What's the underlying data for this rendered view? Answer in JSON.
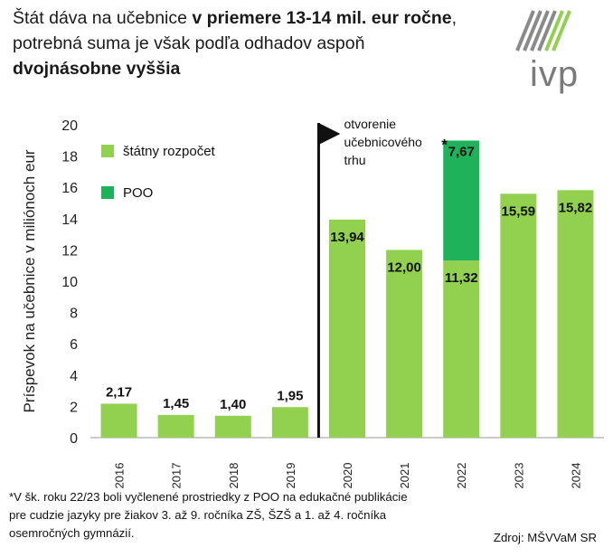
{
  "header": {
    "title_part1": "Štát dáva na učebnice ",
    "title_bold1": "v priemere 13-14 mil. eur ročne",
    "title_part2": ", potrebná suma je však podľa odhadov aspoň ",
    "title_bold2": "dvojnásobne vyššia",
    "logo_text": "ivp"
  },
  "chart_data": {
    "type": "bar",
    "stacked": true,
    "categories": [
      "2016",
      "2017",
      "2018",
      "2019",
      "2020",
      "2021",
      "2022",
      "2023",
      "2024"
    ],
    "series": [
      {
        "name": "štátny rozpočet",
        "color": "#92d050",
        "values": [
          2.17,
          1.45,
          1.4,
          1.95,
          13.94,
          12.0,
          11.32,
          15.59,
          15.82
        ],
        "labels": [
          "2,17",
          "1,45",
          "1,40",
          "1,95",
          "13,94",
          "12,00",
          "11,32",
          "15,59",
          "15,82"
        ]
      },
      {
        "name": "POO",
        "color": "#1fb25a",
        "values": [
          0,
          0,
          0,
          0,
          0,
          0,
          7.67,
          0,
          0
        ],
        "labels": [
          "",
          "",
          "",
          "",
          "",
          "",
          "7,67",
          "",
          ""
        ]
      }
    ],
    "ylabel": "Príspevok na učebnice v miliónoch eur",
    "ylim": [
      0,
      20
    ],
    "yticks": [
      "0",
      "2",
      "4",
      "6",
      "8",
      "10",
      "12",
      "14",
      "16",
      "18",
      "20"
    ],
    "legend_position": "top-left",
    "annotation": {
      "text_lines": [
        "otvorenie",
        "učebnicového",
        "trhu"
      ],
      "after_category": "2019"
    },
    "asterisk": "*"
  },
  "footnote_lines": [
    "*V šk. roku 22/23 boli vyčlenené prostriedky z POO na edukačné publikácie",
    "pre cudzie jazyky pre žiakov 3. až 9.  ročníka ZŠ, ŠZŠ a 1. až 4. ročníka",
    "osemročných gymnázií."
  ],
  "source": "Zdroj: MŠVVaM SR"
}
